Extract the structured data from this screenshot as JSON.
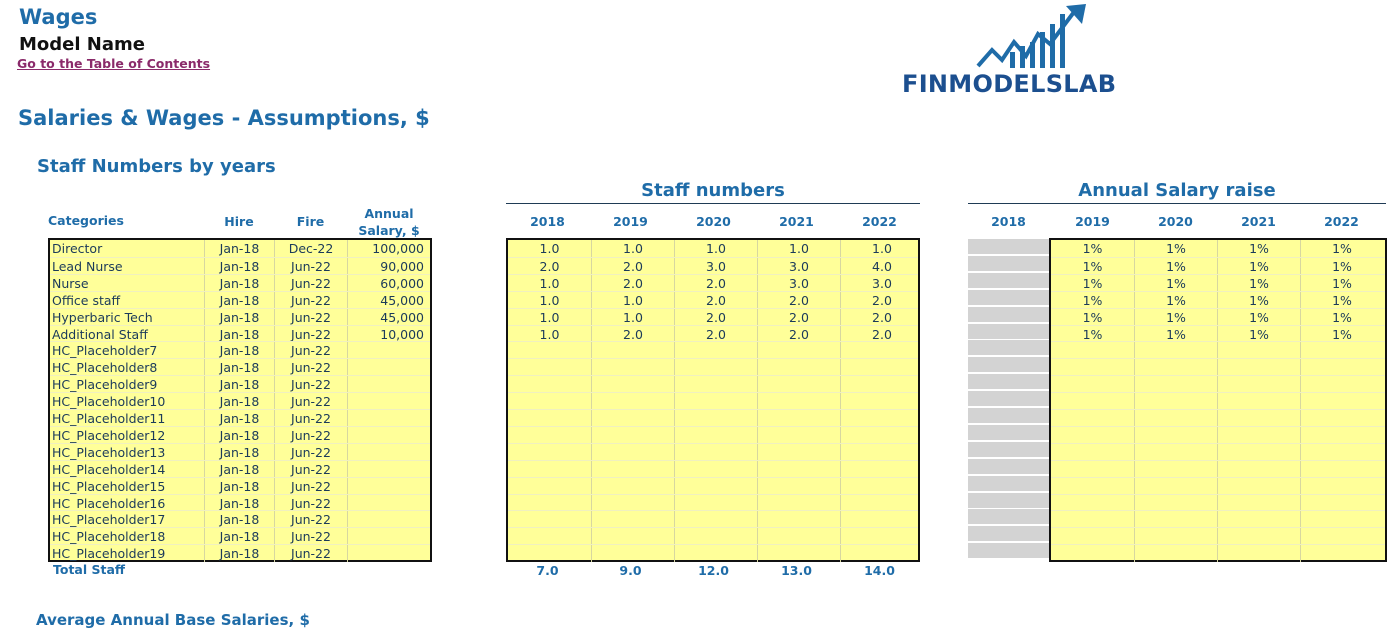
{
  "header": {
    "title": "Wages",
    "model_name": "Model Name",
    "toc_link": "Go to the Table of Contents",
    "logo_text": "FINMODELSLAB"
  },
  "section_title": "Salaries & Wages - Assumptions, $",
  "sub_title": "Staff Numbers by years",
  "bottom_title": "Average Annual Base Salaries, $",
  "table": {
    "headers": {
      "categories": "Categories",
      "hire": "Hire",
      "fire": "Fire",
      "salary_l1": "Annual",
      "salary_l2": "Salary, $"
    },
    "rows": [
      {
        "category": "Director",
        "hire": "Jan-18",
        "fire": "Dec-22",
        "salary": "100,000"
      },
      {
        "category": "Lead Nurse",
        "hire": "Jan-18",
        "fire": "Jun-22",
        "salary": "90,000"
      },
      {
        "category": "Nurse",
        "hire": "Jan-18",
        "fire": "Jun-22",
        "salary": "60,000"
      },
      {
        "category": "Office staff",
        "hire": "Jan-18",
        "fire": "Jun-22",
        "salary": "45,000"
      },
      {
        "category": "Hyperbaric Tech",
        "hire": "Jan-18",
        "fire": "Jun-22",
        "salary": "45,000"
      },
      {
        "category": "Additional Staff",
        "hire": "Jan-18",
        "fire": "Jun-22",
        "salary": "10,000"
      },
      {
        "category": "HC_Placeholder7",
        "hire": "Jan-18",
        "fire": "Jun-22",
        "salary": ""
      },
      {
        "category": "HC_Placeholder8",
        "hire": "Jan-18",
        "fire": "Jun-22",
        "salary": ""
      },
      {
        "category": "HC_Placeholder9",
        "hire": "Jan-18",
        "fire": "Jun-22",
        "salary": ""
      },
      {
        "category": "HC_Placeholder10",
        "hire": "Jan-18",
        "fire": "Jun-22",
        "salary": ""
      },
      {
        "category": "HC_Placeholder11",
        "hire": "Jan-18",
        "fire": "Jun-22",
        "salary": ""
      },
      {
        "category": "HC_Placeholder12",
        "hire": "Jan-18",
        "fire": "Jun-22",
        "salary": ""
      },
      {
        "category": "HC_Placeholder13",
        "hire": "Jan-18",
        "fire": "Jun-22",
        "salary": ""
      },
      {
        "category": "HC_Placeholder14",
        "hire": "Jan-18",
        "fire": "Jun-22",
        "salary": ""
      },
      {
        "category": "HC_Placeholder15",
        "hire": "Jan-18",
        "fire": "Jun-22",
        "salary": ""
      },
      {
        "category": "HC_Placeholder16",
        "hire": "Jan-18",
        "fire": "Jun-22",
        "salary": ""
      },
      {
        "category": "HC_Placeholder17",
        "hire": "Jan-18",
        "fire": "Jun-22",
        "salary": ""
      },
      {
        "category": "HC_Placeholder18",
        "hire": "Jan-18",
        "fire": "Jun-22",
        "salary": ""
      },
      {
        "category": "HC_Placeholder19",
        "hire": "Jan-18",
        "fire": "Jun-22",
        "salary": ""
      }
    ],
    "total_label": "Total Staff"
  },
  "staff_numbers": {
    "title": "Staff numbers",
    "years": [
      "2018",
      "2019",
      "2020",
      "2021",
      "2022"
    ],
    "rows": [
      [
        "1.0",
        "1.0",
        "1.0",
        "1.0",
        "1.0"
      ],
      [
        "2.0",
        "2.0",
        "3.0",
        "3.0",
        "4.0"
      ],
      [
        "1.0",
        "2.0",
        "2.0",
        "3.0",
        "3.0"
      ],
      [
        "1.0",
        "1.0",
        "2.0",
        "2.0",
        "2.0"
      ],
      [
        "1.0",
        "1.0",
        "2.0",
        "2.0",
        "2.0"
      ],
      [
        "1.0",
        "2.0",
        "2.0",
        "2.0",
        "2.0"
      ]
    ],
    "totals": [
      "7.0",
      "9.0",
      "12.0",
      "13.0",
      "14.0"
    ]
  },
  "salary_raise": {
    "title": "Annual Salary raise",
    "years": [
      "2018",
      "2019",
      "2020",
      "2021",
      "2022"
    ],
    "rows": [
      [
        "1%",
        "1%",
        "1%",
        "1%"
      ],
      [
        "1%",
        "1%",
        "1%",
        "1%"
      ],
      [
        "1%",
        "1%",
        "1%",
        "1%"
      ],
      [
        "1%",
        "1%",
        "1%",
        "1%"
      ],
      [
        "1%",
        "1%",
        "1%",
        "1%"
      ],
      [
        "1%",
        "1%",
        "1%",
        "1%"
      ]
    ]
  },
  "colors": {
    "accent": "#1f6ca8",
    "input_fill": "#ffff99",
    "grey_fill": "#d3d3d3",
    "link": "#8a2a6a"
  }
}
